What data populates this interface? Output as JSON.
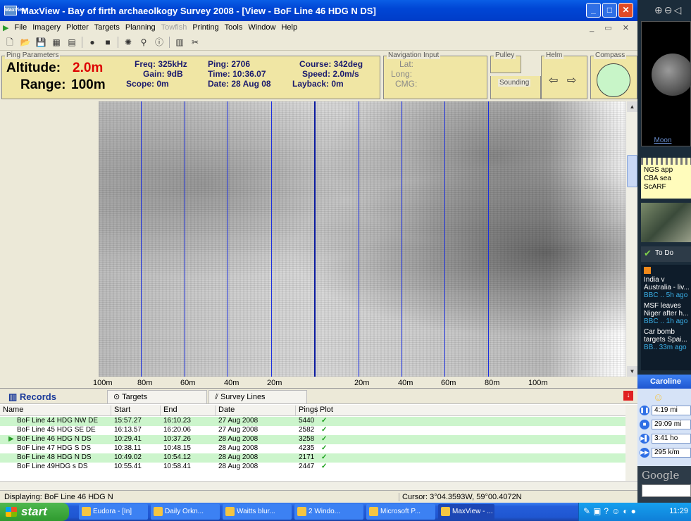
{
  "window": {
    "app_icon": "MaxView",
    "title": "MaxView - Bay of firth archaeolkogy Survey 2008 - [View - BoF Line 46 HDG N DS]"
  },
  "menu": {
    "items": [
      "File",
      "Imagery",
      "Plotter",
      "Targets",
      "Planning",
      "Towfish",
      "Printing",
      "Tools",
      "Window",
      "Help"
    ],
    "disabled": [
      "Towfish"
    ]
  },
  "ping_params": {
    "group_label": "Ping Parameters",
    "altitude_label": "Altitude:",
    "altitude_value": "2.0m",
    "range_label": "Range:",
    "range_value": "100m",
    "freq": "Freq: 325kHz",
    "gain": "Gain: 9dB",
    "scope": "Scope: 0m",
    "ping": "Ping: 2706",
    "time": "Time: 10:36.07",
    "date": "Date: 28 Aug 08",
    "course": "Course: 342deg",
    "speed": "Speed: 2.0m/s",
    "layback": "Layback: 0m"
  },
  "navigation": {
    "group_label": "Navigation Input",
    "lat": "Lat:",
    "long": "Long:",
    "cmg": "CMG:"
  },
  "pulley": {
    "label": "Pulley"
  },
  "sounding": {
    "label": "Sounding"
  },
  "helm": {
    "label": "Helm",
    "arrows": "⇦ ⇨"
  },
  "compass": {
    "label": "Compass",
    "dial_color": "#c8f5c8"
  },
  "range_scale": {
    "ticks": [
      "100m",
      "80m",
      "60m",
      "40m",
      "20m",
      "20m",
      "40m",
      "60m",
      "80m",
      "100m"
    ]
  },
  "records": {
    "tab_records": "Records",
    "tab_targets": "Targets",
    "tab_survey": "Survey Lines",
    "columns": [
      "Name",
      "Start",
      "End",
      "Date",
      "Pings",
      "Plot"
    ],
    "rows": [
      {
        "name": "BoF Line 44 HDG NW DE",
        "start": "15:57.27",
        "end": "16:10.23",
        "date": "27 Aug 2008",
        "pings": "5440",
        "plot": "✓",
        "highlight": true,
        "current": false
      },
      {
        "name": "BoF Line 45 HDG SE DE",
        "start": "16:13.57",
        "end": "16:20.06",
        "date": "27 Aug 2008",
        "pings": "2582",
        "plot": "✓",
        "highlight": false,
        "current": false
      },
      {
        "name": "BoF Line 46 HDG N DS",
        "start": "10:29.41",
        "end": "10:37.26",
        "date": "28 Aug 2008",
        "pings": "3258",
        "plot": "✓",
        "highlight": true,
        "current": true
      },
      {
        "name": "BoF Line 47 HDG S DS",
        "start": "10:38.11",
        "end": "10:48.15",
        "date": "28 Aug 2008",
        "pings": "4235",
        "plot": "✓",
        "highlight": false,
        "current": false
      },
      {
        "name": "BoF Line 48 HDG N DS",
        "start": "10:49.02",
        "end": "10:54.12",
        "date": "28 Aug 2008",
        "pings": "2171",
        "plot": "✓",
        "highlight": true,
        "current": false
      },
      {
        "name": "BoF Line 49HDG s DS",
        "start": "10:55.41",
        "end": "10:58.41",
        "date": "28 Aug 2008",
        "pings": "2447",
        "plot": "✓",
        "highlight": false,
        "current": false
      }
    ]
  },
  "status": {
    "displaying": "Displaying: BoF Line 46 HDG N",
    "cursor": "Cursor: 3°04.3593W, 59°00.4072N"
  },
  "taskbar": {
    "start": "start",
    "tasks": [
      "Eudora - [In]",
      "Daily Orkn...",
      "Waitts blur...",
      "2 Windo...",
      "Microsoft P...",
      "MaxView - ..."
    ],
    "active_task": "MaxView - ...",
    "clock": "11:29"
  },
  "sidebar": {
    "moon_label": "Moon",
    "notes": [
      "NGS app",
      "CBA sea",
      "ScARF"
    ],
    "todo": "To Do",
    "news": [
      {
        "headline": "India v Australia - liv...",
        "src": "BBC .. 5h ago"
      },
      {
        "headline": "MSF leaves Niger after h...",
        "src": "BBC .. 1h ago"
      },
      {
        "headline": "Car bomb targets Spai...",
        "src": "BB.. 33m ago"
      }
    ],
    "messenger_name": "Caroline",
    "messenger_fields": [
      "4:19 mi",
      "29:09 mi",
      "3:41 ho",
      "295 k/m"
    ],
    "google": "Google"
  }
}
